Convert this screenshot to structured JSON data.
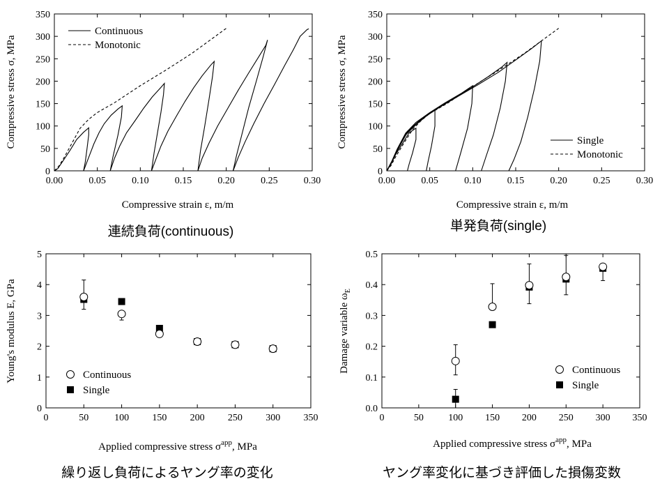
{
  "captions": {
    "top_left": "連続負荷(continuous)",
    "top_right": "単発負荷(single)",
    "bottom_left": "繰り返し負荷によるヤング率の変化",
    "bottom_right": "ヤング率変化に基づき評価した損傷変数"
  },
  "chart_data": [
    {
      "type": "line",
      "xlabel": "Compressive strain ε, m/m",
      "ylabel": "Compressive stress σ, MPa",
      "xlim": [
        0,
        0.3
      ],
      "ylim": [
        0,
        350
      ],
      "xticks": [
        "0.00",
        "0.05",
        "0.10",
        "0.15",
        "0.20",
        "0.25",
        "0.30"
      ],
      "yticks": [
        "0",
        "50",
        "100",
        "150",
        "200",
        "250",
        "300",
        "350"
      ],
      "legend_position": "top-left",
      "series": [
        {
          "name": "Continuous",
          "style": "solid",
          "segments": [
            [
              [
                0,
                0
              ],
              [
                0.004,
                5
              ],
              [
                0.01,
                22
              ],
              [
                0.018,
                45
              ],
              [
                0.026,
                70
              ],
              [
                0.034,
                86
              ],
              [
                0.04,
                96
              ],
              [
                0.04,
                80
              ],
              [
                0.038,
                50
              ],
              [
                0.036,
                20
              ],
              [
                0.034,
                0
              ]
            ],
            [
              [
                0.034,
                0
              ],
              [
                0.04,
                30
              ],
              [
                0.046,
                60
              ],
              [
                0.052,
                85
              ],
              [
                0.058,
                105
              ],
              [
                0.066,
                124
              ],
              [
                0.074,
                138
              ],
              [
                0.079,
                145
              ],
              [
                0.078,
                120
              ],
              [
                0.074,
                80
              ],
              [
                0.068,
                30
              ],
              [
                0.065,
                0
              ]
            ],
            [
              [
                0.065,
                0
              ],
              [
                0.07,
                28
              ],
              [
                0.076,
                55
              ],
              [
                0.084,
                85
              ],
              [
                0.094,
                112
              ],
              [
                0.104,
                140
              ],
              [
                0.114,
                165
              ],
              [
                0.124,
                186
              ],
              [
                0.128,
                195
              ],
              [
                0.127,
                170
              ],
              [
                0.124,
                130
              ],
              [
                0.12,
                85
              ],
              [
                0.116,
                40
              ],
              [
                0.113,
                0
              ]
            ],
            [
              [
                0.113,
                0
              ],
              [
                0.118,
                25
              ],
              [
                0.124,
                55
              ],
              [
                0.132,
                88
              ],
              [
                0.142,
                122
              ],
              [
                0.152,
                155
              ],
              [
                0.162,
                185
              ],
              [
                0.172,
                212
              ],
              [
                0.182,
                236
              ],
              [
                0.186,
                244
              ],
              [
                0.184,
                210
              ],
              [
                0.18,
                160
              ],
              [
                0.175,
                100
              ],
              [
                0.17,
                45
              ],
              [
                0.167,
                0
              ]
            ],
            [
              [
                0.167,
                0
              ],
              [
                0.172,
                28
              ],
              [
                0.18,
                62
              ],
              [
                0.19,
                100
              ],
              [
                0.202,
                140
              ],
              [
                0.214,
                180
              ],
              [
                0.226,
                218
              ],
              [
                0.238,
                255
              ],
              [
                0.246,
                280
              ],
              [
                0.248,
                292
              ],
              [
                0.243,
                255
              ],
              [
                0.235,
                200
              ],
              [
                0.226,
                140
              ],
              [
                0.218,
                80
              ],
              [
                0.212,
                35
              ],
              [
                0.208,
                0
              ]
            ],
            [
              [
                0.208,
                0
              ],
              [
                0.214,
                30
              ],
              [
                0.222,
                65
              ],
              [
                0.232,
                105
              ],
              [
                0.244,
                150
              ],
              [
                0.256,
                192
              ],
              [
                0.268,
                235
              ],
              [
                0.278,
                270
              ],
              [
                0.286,
                300
              ],
              [
                0.294,
                315
              ],
              [
                0.296,
                317
              ]
            ]
          ]
        },
        {
          "name": "Monotonic",
          "style": "dashed",
          "points": [
            [
              0,
              0
            ],
            [
              0.005,
              10
            ],
            [
              0.01,
              25
            ],
            [
              0.02,
              60
            ],
            [
              0.03,
              95
            ],
            [
              0.04,
              115
            ],
            [
              0.05,
              130
            ],
            [
              0.07,
              152
            ],
            [
              0.1,
              190
            ],
            [
              0.13,
              225
            ],
            [
              0.16,
              262
            ],
            [
              0.18,
              290
            ],
            [
              0.2,
              318
            ]
          ]
        }
      ]
    },
    {
      "type": "line",
      "xlabel": "Compressive strain ε, m/m",
      "ylabel": "Compressive stress σ, MPa",
      "xlim": [
        0,
        0.3
      ],
      "ylim": [
        0,
        350
      ],
      "xticks": [
        "0.00",
        "0.05",
        "0.10",
        "0.15",
        "0.20",
        "0.25",
        "0.30"
      ],
      "yticks": [
        "0",
        "50",
        "100",
        "150",
        "200",
        "250",
        "300",
        "350"
      ],
      "legend_position": "bottom-right",
      "series": [
        {
          "name": "Single",
          "style": "solid",
          "segments": [
            [
              [
                0,
                0
              ],
              [
                0.005,
                15
              ],
              [
                0.01,
                35
              ],
              [
                0.018,
                60
              ],
              [
                0.026,
                85
              ],
              [
                0.034,
                95
              ],
              [
                0.034,
                70
              ],
              [
                0.03,
                40
              ],
              [
                0.026,
                15
              ],
              [
                0.024,
                0
              ]
            ],
            [
              [
                0,
                0
              ],
              [
                0.006,
                20
              ],
              [
                0.012,
                45
              ],
              [
                0.022,
                80
              ],
              [
                0.034,
                103
              ],
              [
                0.046,
                122
              ],
              [
                0.056,
                136
              ],
              [
                0.056,
                100
              ],
              [
                0.052,
                55
              ],
              [
                0.048,
                20
              ],
              [
                0.046,
                0
              ]
            ],
            [
              [
                0,
                0
              ],
              [
                0.006,
                22
              ],
              [
                0.012,
                48
              ],
              [
                0.022,
                84
              ],
              [
                0.034,
                108
              ],
              [
                0.05,
                130
              ],
              [
                0.068,
                152
              ],
              [
                0.086,
                172
              ],
              [
                0.1,
                190
              ],
              [
                0.099,
                150
              ],
              [
                0.094,
                95
              ],
              [
                0.086,
                40
              ],
              [
                0.08,
                0
              ]
            ],
            [
              [
                0,
                0
              ],
              [
                0.007,
                24
              ],
              [
                0.014,
                52
              ],
              [
                0.024,
                86
              ],
              [
                0.038,
                112
              ],
              [
                0.056,
                137
              ],
              [
                0.076,
                160
              ],
              [
                0.098,
                185
              ],
              [
                0.118,
                210
              ],
              [
                0.134,
                232
              ],
              [
                0.14,
                242
              ],
              [
                0.138,
                200
              ],
              [
                0.132,
                140
              ],
              [
                0.124,
                80
              ],
              [
                0.116,
                35
              ],
              [
                0.11,
                0
              ]
            ],
            [
              [
                0,
                0
              ],
              [
                0.007,
                25
              ],
              [
                0.014,
                54
              ],
              [
                0.024,
                88
              ],
              [
                0.04,
                115
              ],
              [
                0.06,
                140
              ],
              [
                0.082,
                165
              ],
              [
                0.106,
                192
              ],
              [
                0.13,
                220
              ],
              [
                0.152,
                250
              ],
              [
                0.17,
                275
              ],
              [
                0.18,
                290
              ],
              [
                0.178,
                245
              ],
              [
                0.172,
                185
              ],
              [
                0.164,
                120
              ],
              [
                0.156,
                65
              ],
              [
                0.148,
                25
              ],
              [
                0.142,
                0
              ]
            ]
          ]
        },
        {
          "name": "Monotonic",
          "style": "dashed",
          "points": [
            [
              0,
              0
            ],
            [
              0.005,
              12
            ],
            [
              0.01,
              30
            ],
            [
              0.02,
              62
            ],
            [
              0.03,
              92
            ],
            [
              0.04,
              112
            ],
            [
              0.05,
              128
            ],
            [
              0.07,
              150
            ],
            [
              0.1,
              188
            ],
            [
              0.13,
              224
            ],
            [
              0.16,
              262
            ],
            [
              0.18,
              290
            ],
            [
              0.2,
              318
            ]
          ]
        }
      ]
    },
    {
      "type": "scatter",
      "xlabel": "Applied compressive stress σapp, MPa",
      "ylabel": "Young's modulus E, GPa",
      "xlim": [
        0,
        350
      ],
      "ylim": [
        0,
        5
      ],
      "xticks": [
        "0",
        "50",
        "100",
        "150",
        "200",
        "250",
        "300",
        "350"
      ],
      "yticks": [
        "0",
        "1",
        "2",
        "3",
        "4",
        "5"
      ],
      "legend_position": "bottom-left",
      "series": [
        {
          "name": "Continuous",
          "marker": "open-circle",
          "x": [
            50,
            100,
            150,
            200,
            250,
            300
          ],
          "y": [
            3.6,
            3.05,
            2.4,
            2.15,
            2.05,
            1.92
          ],
          "err_low": [
            3.2,
            2.85,
            2.4,
            2.15,
            2.05,
            1.92
          ],
          "err_high": [
            4.15,
            3.05,
            2.4,
            2.15,
            2.05,
            1.92
          ]
        },
        {
          "name": "Single",
          "marker": "filled-square",
          "x": [
            50,
            100,
            150,
            200,
            250,
            300
          ],
          "y": [
            3.52,
            3.45,
            2.58,
            2.15,
            2.05,
            1.92
          ]
        }
      ]
    },
    {
      "type": "scatter",
      "xlabel": "Applied compressive stress σapp, MPa",
      "ylabel": "Damage variable ωE",
      "xlim": [
        0,
        350
      ],
      "ylim": [
        0,
        0.5
      ],
      "xticks": [
        "0",
        "50",
        "100",
        "150",
        "200",
        "250",
        "300",
        "350"
      ],
      "yticks": [
        "0.0",
        "0.1",
        "0.2",
        "0.3",
        "0.4",
        "0.5"
      ],
      "legend_position": "bottom-right",
      "series": [
        {
          "name": "Continuous",
          "marker": "open-circle",
          "x": [
            100,
            150,
            200,
            250,
            300
          ],
          "y": [
            0.152,
            0.328,
            0.398,
            0.425,
            0.458
          ],
          "err_low": [
            0.107,
            0.328,
            0.338,
            0.367,
            0.413
          ],
          "err_high": [
            0.205,
            0.403,
            0.467,
            0.495,
            0.458
          ]
        },
        {
          "name": "Single",
          "marker": "filled-square",
          "x": [
            100,
            150,
            200,
            250,
            300
          ],
          "y": [
            0.028,
            0.27,
            0.392,
            0.418,
            0.453
          ],
          "err_low": [
            0.0,
            0.27,
            0.392,
            0.418,
            0.453
          ],
          "err_high": [
            0.06,
            0.27,
            0.392,
            0.418,
            0.453
          ]
        }
      ]
    }
  ]
}
